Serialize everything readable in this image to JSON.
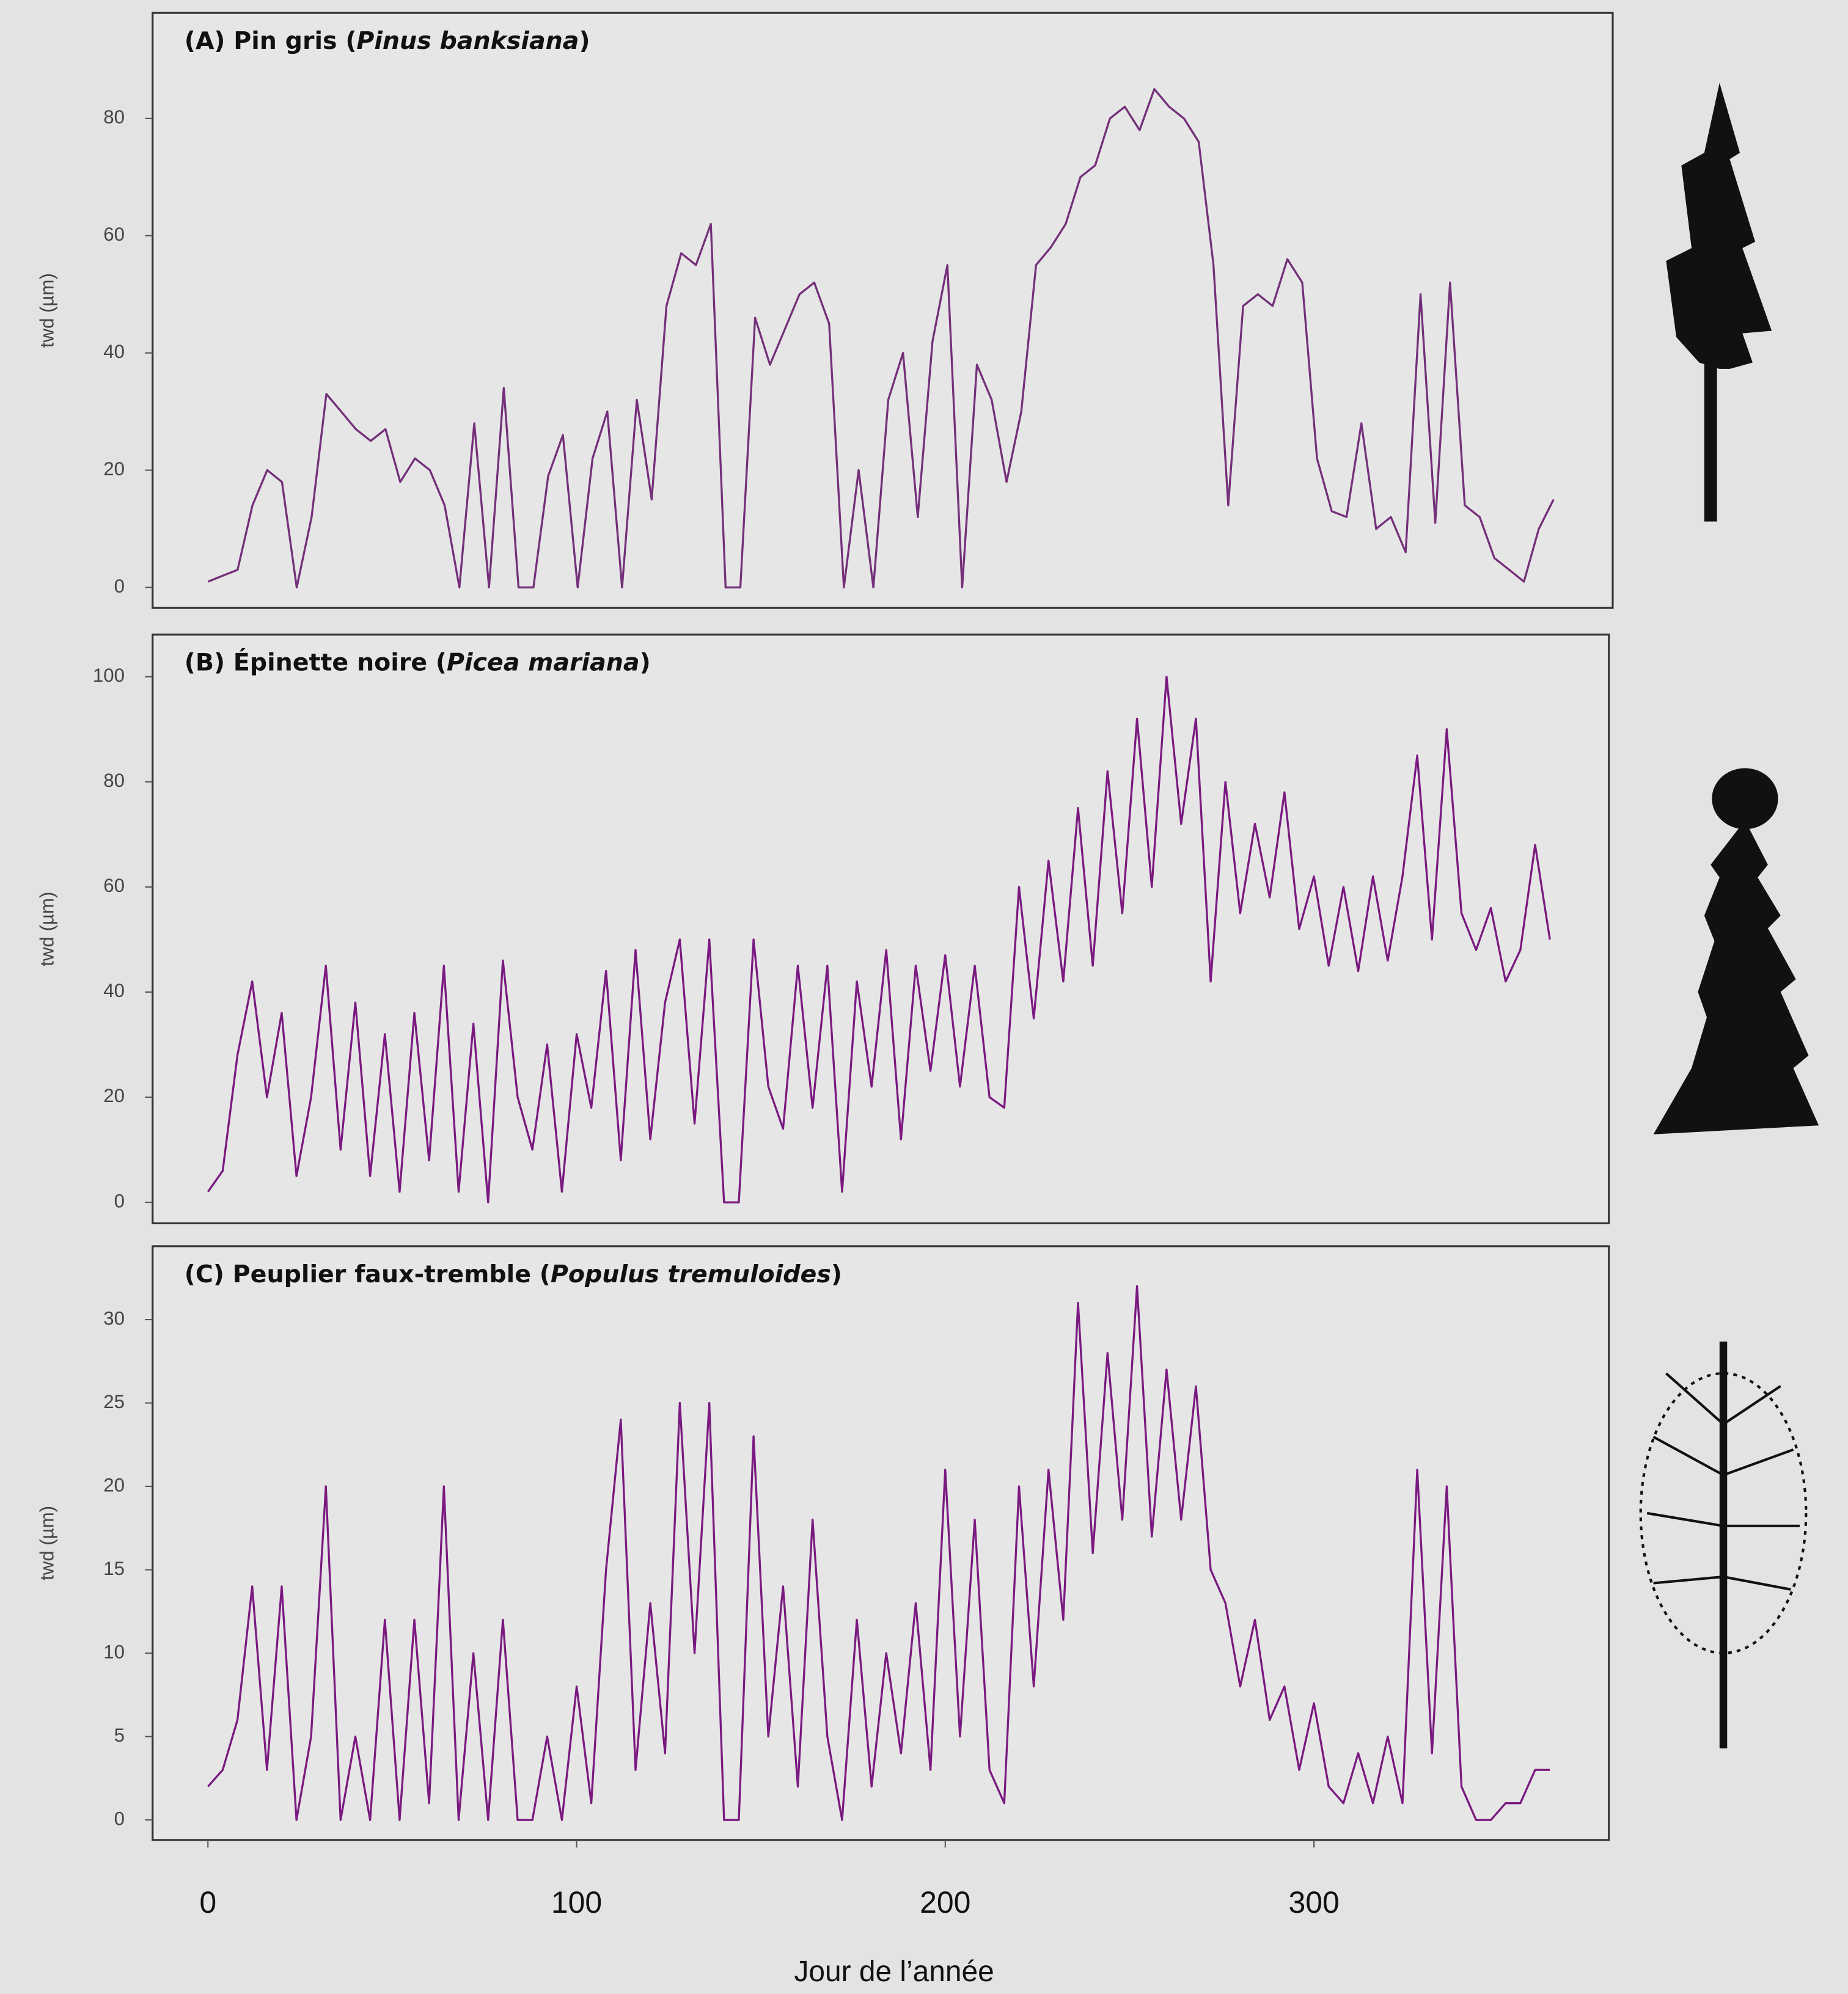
{
  "chart_data": [
    {
      "type": "line",
      "title_parts": [
        "(A) Pin gris (",
        "Pinus banksiana",
        ")"
      ],
      "y_label": "twd (µm)",
      "x": [
        0,
        4,
        8,
        12,
        16,
        20,
        24,
        28,
        32,
        36,
        40,
        44,
        48,
        52,
        56,
        60,
        64,
        68,
        72,
        76,
        80,
        84,
        88,
        92,
        96,
        100,
        104,
        108,
        112,
        116,
        120,
        124,
        128,
        132,
        136,
        140,
        144,
        148,
        152,
        156,
        160,
        164,
        168,
        172,
        176,
        180,
        184,
        188,
        192,
        196,
        200,
        204,
        208,
        212,
        216,
        220,
        224,
        228,
        232,
        236,
        240,
        244,
        248,
        252,
        256,
        260,
        264,
        268,
        272,
        276,
        280,
        284,
        288,
        292,
        296,
        300,
        304,
        308,
        312,
        316,
        320,
        324,
        328,
        332,
        336,
        340,
        344,
        348,
        352,
        356,
        360,
        364
      ],
      "series": [
        {
          "color": "#74307a",
          "values": [
            1,
            2,
            3,
            14,
            20,
            18,
            0,
            12,
            33,
            30,
            27,
            25,
            27,
            18,
            22,
            20,
            14,
            0,
            28,
            0,
            34,
            0,
            0,
            19,
            26,
            0,
            22,
            30,
            0,
            32,
            15,
            48,
            57,
            55,
            62,
            0,
            0,
            46,
            38,
            44,
            50,
            52,
            45,
            0,
            20,
            0,
            32,
            40,
            12,
            42,
            55,
            0,
            38,
            32,
            18,
            30,
            55,
            58,
            62,
            70,
            72,
            80,
            82,
            78,
            85,
            82,
            80,
            76,
            55,
            14,
            48,
            50,
            48,
            56,
            52,
            22,
            13,
            12,
            28,
            10,
            12,
            6,
            50,
            11,
            52,
            14,
            12,
            5,
            3,
            1,
            10,
            15
          ]
        }
      ],
      "xlim": [
        -15,
        380
      ],
      "ylim": [
        -3.5,
        98
      ],
      "yticks": [
        0,
        20,
        40,
        60,
        80
      ]
    },
    {
      "type": "line",
      "title_parts": [
        "(B) Épinette noire (",
        "Picea mariana",
        ")"
      ],
      "y_label": "twd (µm)",
      "x": [
        0,
        4,
        8,
        12,
        16,
        20,
        24,
        28,
        32,
        36,
        40,
        44,
        48,
        52,
        56,
        60,
        64,
        68,
        72,
        76,
        80,
        84,
        88,
        92,
        96,
        100,
        104,
        108,
        112,
        116,
        120,
        124,
        128,
        132,
        136,
        140,
        144,
        148,
        152,
        156,
        160,
        164,
        168,
        172,
        176,
        180,
        184,
        188,
        192,
        196,
        200,
        204,
        208,
        212,
        216,
        220,
        224,
        228,
        232,
        236,
        240,
        244,
        248,
        252,
        256,
        260,
        264,
        268,
        272,
        276,
        280,
        284,
        288,
        292,
        296,
        300,
        304,
        308,
        312,
        316,
        320,
        324,
        328,
        332,
        336,
        340,
        344,
        348,
        352,
        356,
        360,
        364
      ],
      "series": [
        {
          "color": "#7a1a80",
          "values": [
            2,
            6,
            28,
            42,
            20,
            36,
            5,
            20,
            45,
            10,
            38,
            5,
            32,
            2,
            36,
            8,
            45,
            2,
            34,
            0,
            46,
            20,
            10,
            30,
            2,
            32,
            18,
            44,
            8,
            48,
            12,
            38,
            50,
            15,
            50,
            0,
            0,
            50,
            22,
            14,
            45,
            18,
            45,
            2,
            42,
            22,
            48,
            12,
            45,
            25,
            47,
            22,
            45,
            20,
            18,
            60,
            35,
            65,
            42,
            75,
            45,
            82,
            55,
            92,
            60,
            100,
            72,
            92,
            42,
            80,
            55,
            72,
            58,
            78,
            52,
            62,
            45,
            60,
            44,
            62,
            46,
            62,
            85,
            50,
            90,
            55,
            48,
            56,
            42,
            48,
            68,
            50
          ]
        }
      ],
      "xlim": [
        -15,
        380
      ],
      "ylim": [
        -4,
        108
      ],
      "yticks": [
        0,
        20,
        40,
        60,
        80,
        100
      ]
    },
    {
      "type": "line",
      "title_parts": [
        "(C) Peuplier faux-tremble (",
        "Populus tremuloides",
        ")"
      ],
      "y_label": "twd (µm)",
      "x_label": "Jour de l’année",
      "x": [
        0,
        4,
        8,
        12,
        16,
        20,
        24,
        28,
        32,
        36,
        40,
        44,
        48,
        52,
        56,
        60,
        64,
        68,
        72,
        76,
        80,
        84,
        88,
        92,
        96,
        100,
        104,
        108,
        112,
        116,
        120,
        124,
        128,
        132,
        136,
        140,
        144,
        148,
        152,
        156,
        160,
        164,
        168,
        172,
        176,
        180,
        184,
        188,
        192,
        196,
        200,
        204,
        208,
        212,
        216,
        220,
        224,
        228,
        232,
        236,
        240,
        244,
        248,
        252,
        256,
        260,
        264,
        268,
        272,
        276,
        280,
        284,
        288,
        292,
        296,
        300,
        304,
        308,
        312,
        316,
        320,
        324,
        328,
        332,
        336,
        340,
        344,
        348,
        352,
        356,
        360,
        364
      ],
      "series": [
        {
          "color": "#7a1a80",
          "values": [
            2,
            3,
            6,
            14,
            3,
            14,
            0,
            5,
            20,
            0,
            5,
            0,
            12,
            0,
            12,
            1,
            20,
            0,
            10,
            0,
            12,
            0,
            0,
            5,
            0,
            8,
            1,
            15,
            24,
            3,
            13,
            4,
            25,
            10,
            25,
            0,
            0,
            23,
            5,
            14,
            2,
            18,
            5,
            0,
            12,
            2,
            10,
            4,
            13,
            3,
            21,
            5,
            18,
            3,
            1,
            20,
            8,
            21,
            12,
            31,
            16,
            28,
            18,
            32,
            17,
            27,
            18,
            26,
            15,
            13,
            8,
            12,
            6,
            8,
            3,
            7,
            2,
            1,
            4,
            1,
            5,
            1,
            21,
            4,
            20,
            2,
            0,
            0,
            1,
            1,
            3,
            3
          ]
        }
      ],
      "xlim": [
        -15,
        380
      ],
      "ylim": [
        -1.2,
        34.4
      ],
      "yticks": [
        0,
        5,
        10,
        15,
        20,
        25,
        30
      ],
      "xticks": [
        0,
        100,
        200,
        300
      ]
    }
  ]
}
